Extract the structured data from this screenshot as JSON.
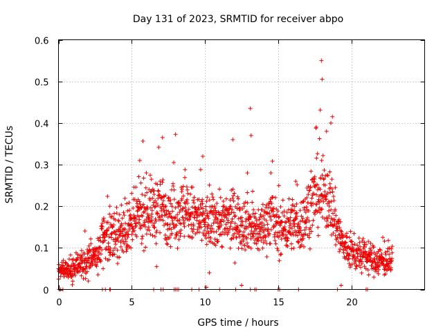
{
  "chart_data": {
    "type": "scatter",
    "title": "Day 131 of 2023, SRMTID for receiver abpo",
    "xlabel": "GPS time / hours",
    "ylabel": "SRMTID / TECUs",
    "xlim": [
      0,
      25
    ],
    "ylim": [
      0,
      0.6
    ],
    "xticks": [
      0,
      5,
      10,
      15,
      20
    ],
    "yticks": [
      0,
      0.1,
      0.2,
      0.3,
      0.4,
      0.5,
      0.6
    ],
    "xtick_labels": [
      "0",
      "5",
      "10",
      "15",
      "20"
    ],
    "ytick_labels": [
      "0",
      "0.1",
      "0.2",
      "0.3",
      "0.4",
      "0.5",
      "0.6"
    ],
    "grid": true,
    "marker": "+",
    "color": "#ee0000",
    "series": [
      {
        "name": "SRMTID",
        "profile": [
          [
            0.0,
            0.05
          ],
          [
            0.5,
            0.04
          ],
          [
            1.0,
            0.05
          ],
          [
            1.5,
            0.06
          ],
          [
            2.0,
            0.065
          ],
          [
            2.5,
            0.08
          ],
          [
            2.9,
            0.1
          ],
          [
            3.0,
            0.13
          ],
          [
            3.5,
            0.13
          ],
          [
            4.0,
            0.13
          ],
          [
            4.5,
            0.14
          ],
          [
            5.0,
            0.15
          ],
          [
            5.5,
            0.18
          ],
          [
            6.0,
            0.19
          ],
          [
            6.5,
            0.19
          ],
          [
            7.0,
            0.2
          ],
          [
            7.5,
            0.18
          ],
          [
            8.0,
            0.18
          ],
          [
            8.5,
            0.19
          ],
          [
            9.0,
            0.18
          ],
          [
            9.5,
            0.17
          ],
          [
            10.0,
            0.16
          ],
          [
            10.5,
            0.16
          ],
          [
            11.0,
            0.17
          ],
          [
            11.5,
            0.16
          ],
          [
            12.0,
            0.17
          ],
          [
            12.5,
            0.16
          ],
          [
            13.0,
            0.16
          ],
          [
            13.5,
            0.14
          ],
          [
            14.0,
            0.15
          ],
          [
            14.5,
            0.18
          ],
          [
            15.0,
            0.14
          ],
          [
            15.5,
            0.15
          ],
          [
            16.0,
            0.16
          ],
          [
            16.5,
            0.15
          ],
          [
            17.0,
            0.19
          ],
          [
            17.5,
            0.22
          ],
          [
            18.0,
            0.23
          ],
          [
            18.5,
            0.22
          ],
          [
            19.0,
            0.15
          ],
          [
            19.5,
            0.1
          ],
          [
            20.0,
            0.09
          ],
          [
            20.5,
            0.08
          ],
          [
            21.0,
            0.08
          ],
          [
            21.5,
            0.07
          ],
          [
            22.0,
            0.07
          ],
          [
            22.5,
            0.065
          ],
          [
            22.8,
            0.06
          ]
        ],
        "outliers": [
          [
            17.95,
            0.55
          ],
          [
            18.0,
            0.505
          ],
          [
            13.1,
            0.435
          ],
          [
            18.7,
            0.415
          ],
          [
            18.6,
            0.4
          ],
          [
            17.6,
            0.39
          ],
          [
            18.3,
            0.38
          ],
          [
            13.15,
            0.37
          ],
          [
            7.1,
            0.365
          ],
          [
            11.9,
            0.36
          ],
          [
            9.85,
            0.32
          ],
          [
            5.55,
            0.31
          ],
          [
            6.0,
            0.28
          ],
          [
            12.9,
            0.28
          ],
          [
            14.5,
            0.28
          ],
          [
            16.2,
            0.26
          ],
          [
            10.3,
            0.04
          ],
          [
            12.5,
            0.01
          ],
          [
            19.3,
            0.01
          ],
          [
            10.1,
            0.005
          ],
          [
            3.05,
            0.05
          ],
          [
            6.7,
            0.055
          ]
        ],
        "zero_points": [
          0.05,
          0.15,
          0.3,
          3.0,
          3.2,
          3.5,
          3.55,
          6.5,
          7.0,
          7.15,
          7.9,
          8.0,
          8.1,
          8.2,
          9.1,
          9.6,
          11.0,
          12.1,
          13.1,
          13.4,
          13.5,
          15.0,
          15.1,
          16.4,
          19.05,
          21.0,
          21.1
        ]
      }
    ]
  }
}
